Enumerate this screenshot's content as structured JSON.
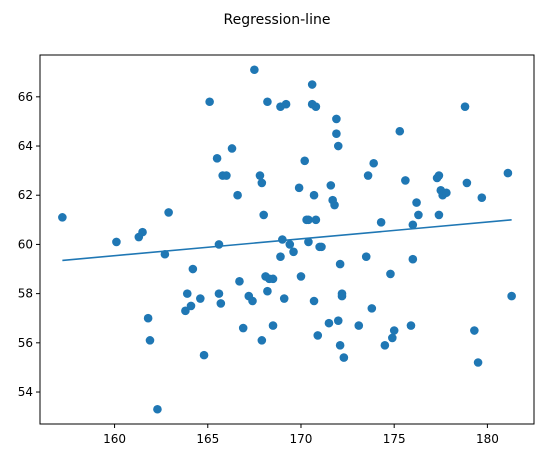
{
  "chart_data": {
    "type": "scatter",
    "title": "Regression-line",
    "xlabel": "",
    "ylabel": "",
    "xlim": [
      156.0,
      182.5
    ],
    "ylim": [
      52.7,
      67.7
    ],
    "xticks": [
      160,
      165,
      170,
      175,
      180
    ],
    "yticks": [
      54,
      56,
      58,
      60,
      62,
      64,
      66
    ],
    "grid": false,
    "colors": {
      "points": "#1f77b4",
      "line": "#1f77b4"
    },
    "points": {
      "x": [
        157.2,
        160.1,
        161.3,
        161.5,
        161.8,
        161.9,
        162.3,
        162.7,
        162.9,
        163.8,
        163.9,
        164.1,
        164.2,
        164.6,
        164.8,
        165.1,
        165.5,
        165.6,
        165.6,
        165.7,
        165.8,
        166.0,
        166.3,
        166.6,
        166.7,
        166.9,
        167.2,
        167.4,
        167.5,
        167.8,
        167.9,
        167.9,
        168.0,
        168.1,
        168.2,
        168.2,
        168.3,
        168.5,
        168.5,
        168.9,
        168.9,
        169.0,
        169.1,
        169.2,
        169.4,
        169.6,
        169.9,
        170.0,
        170.2,
        170.3,
        170.4,
        170.4,
        170.6,
        170.6,
        170.7,
        170.7,
        170.8,
        170.8,
        170.9,
        171.0,
        171.1,
        171.5,
        171.6,
        171.7,
        171.8,
        171.9,
        171.9,
        172.0,
        172.0,
        172.1,
        172.1,
        172.2,
        172.2,
        172.3,
        173.1,
        173.5,
        173.6,
        173.8,
        173.9,
        174.3,
        174.5,
        174.8,
        174.9,
        175.0,
        175.3,
        175.6,
        175.9,
        176.0,
        176.0,
        176.2,
        176.3,
        177.3,
        177.4,
        177.4,
        177.5,
        177.6,
        177.8,
        178.8,
        178.9,
        179.3,
        179.5,
        179.7,
        181.1,
        181.3
      ],
      "y": [
        61.1,
        60.1,
        60.3,
        60.5,
        57.0,
        56.1,
        53.3,
        59.6,
        61.3,
        57.3,
        58.0,
        57.5,
        59.0,
        57.8,
        55.5,
        65.8,
        63.5,
        60.0,
        58.0,
        57.6,
        62.8,
        62.8,
        63.9,
        62.0,
        58.5,
        56.6,
        57.9,
        57.7,
        67.1,
        62.8,
        62.5,
        56.1,
        61.2,
        58.7,
        58.1,
        65.8,
        58.6,
        56.7,
        58.6,
        59.5,
        65.6,
        60.2,
        57.8,
        65.7,
        60.0,
        59.7,
        62.3,
        58.7,
        63.4,
        61.0,
        60.1,
        61.0,
        66.5,
        65.7,
        62.0,
        57.7,
        65.6,
        61.0,
        56.3,
        59.9,
        59.9,
        56.8,
        62.4,
        61.8,
        61.6,
        65.1,
        64.5,
        64.0,
        56.9,
        55.9,
        59.2,
        57.9,
        58.0,
        55.4,
        56.7,
        59.5,
        62.8,
        57.4,
        63.3,
        60.9,
        55.9,
        58.8,
        56.2,
        56.5,
        64.6,
        62.6,
        56.7,
        59.4,
        60.8,
        61.7,
        61.2,
        62.7,
        62.8,
        61.2,
        62.2,
        62.0,
        62.1,
        65.6,
        62.5,
        56.5,
        55.2,
        61.9,
        62.9,
        57.9
      ]
    },
    "regression_line": {
      "x": [
        157.2,
        181.3
      ],
      "y": [
        59.35,
        61.0
      ]
    }
  }
}
